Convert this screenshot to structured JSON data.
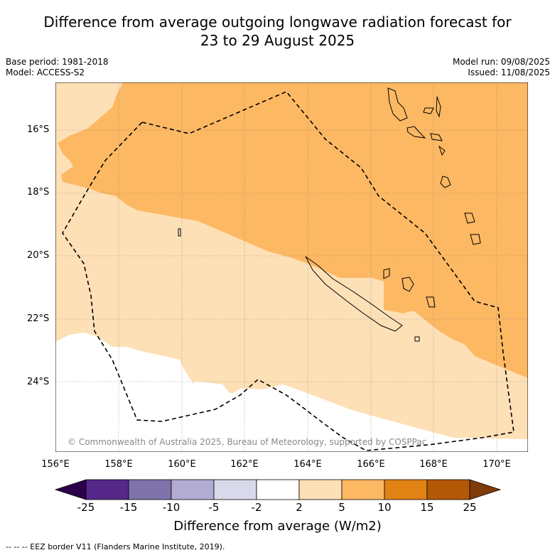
{
  "title_line1": "Difference from average outgoing longwave radiation forecast for",
  "title_line2": "23 to 29 August 2025",
  "base_period": "Base period: 1981-2018",
  "model": "Model: ACCESS-S2",
  "model_run": "Model run: 09/08/2025",
  "issued": "Issued: 11/08/2025",
  "lat_labels": [
    "16°S",
    "18°S",
    "20°S",
    "22°S",
    "24°S"
  ],
  "lon_labels": [
    "156°E",
    "158°E",
    "160°E",
    "162°E",
    "164°E",
    "166°E",
    "168°E",
    "170°E"
  ],
  "copyright": "© Commonwealth of Australia 2025, Bureau of Meteorology, supported by COSPPac",
  "colorbar": {
    "ticks": [
      "-25",
      "-15",
      "-10",
      "-5",
      "-2",
      "2",
      "5",
      "10",
      "15",
      "25"
    ],
    "colors": [
      "#2d004b",
      "#542788",
      "#8073ac",
      "#b2abd2",
      "#d8daeb",
      "#ffffff",
      "#fee0b6",
      "#fdb863",
      "#e08214",
      "#b35806",
      "#7f3b08"
    ],
    "title": "Difference from average (W/m2)"
  },
  "footer": "--  --  -- EEZ border V11 (Flanders Marine Institute, 2019)."
}
